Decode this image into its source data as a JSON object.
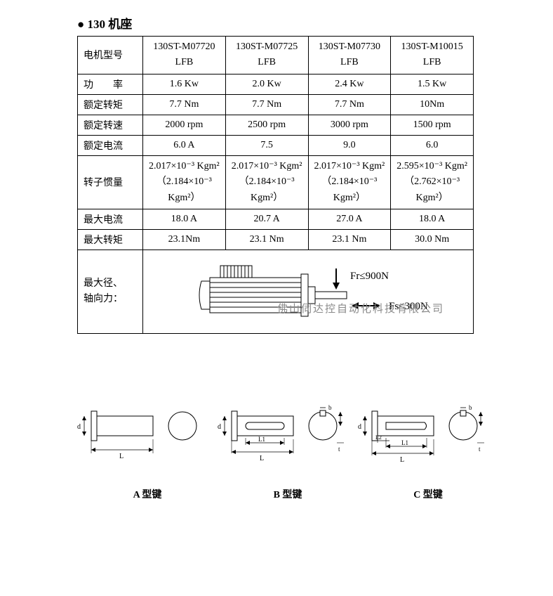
{
  "heading": "●  130 机座",
  "watermark": "佛山伺达控自动化科技有限公司",
  "table": {
    "row_labels": [
      "电机型号",
      "功　　率",
      "额定转矩",
      "额定转速",
      "额定电流",
      "转子惯量",
      "最大电流",
      "最大转矩"
    ],
    "force_row_label": "最大径、\n轴向力：",
    "columns": [
      {
        "model": "130ST-M07720LFB",
        "power": "1.6 Kw",
        "torque": "7.7 Nm",
        "speed": "2000 rpm",
        "current": "6.0 A",
        "inertia": "2.017×10⁻³ Kgm²\n（2.184×10⁻³ Kgm²）",
        "max_current": "18.0 A",
        "max_torque": "23.1Nm"
      },
      {
        "model": "130ST-M07725LFB",
        "power": "2.0 Kw",
        "torque": "7.7 Nm",
        "speed": "2500 rpm",
        "current": "7.5",
        "inertia": "2.017×10⁻³ Kgm²\n（2.184×10⁻³ Kgm²）",
        "max_current": "20.7 A",
        "max_torque": "23.1 Nm"
      },
      {
        "model": "130ST-M07730LFB",
        "power": "2.4 Kw",
        "torque": "7.7 Nm",
        "speed": "3000 rpm",
        "current": "9.0",
        "inertia": "2.017×10⁻³ Kgm²\n（2.184×10⁻³ Kgm²）",
        "max_current": "27.0 A",
        "max_torque": "23.1 Nm"
      },
      {
        "model": "130ST-M10015LFB",
        "power": "1.5 Kw",
        "torque": "10Nm",
        "speed": "1500 rpm",
        "current": "6.0",
        "inertia": "2.595×10⁻³ Kgm²\n（2.762×10⁻³ Kgm²）",
        "max_current": "18.0 A",
        "max_torque": "30.0 Nm"
      }
    ],
    "forces": {
      "radial": "Fr≤900N",
      "axial": "Fs≤300N"
    }
  },
  "keys": {
    "labels": [
      "A 型键",
      "B 型键",
      "C 型键"
    ],
    "dim_labels": {
      "d": "d",
      "L": "L",
      "L1": "L1",
      "L2": "L2",
      "t": "t",
      "b": "b"
    }
  },
  "colors": {
    "stroke": "#000000",
    "fill_hatch": "#000000",
    "bg": "#ffffff",
    "watermark": "#8a8a8a"
  }
}
